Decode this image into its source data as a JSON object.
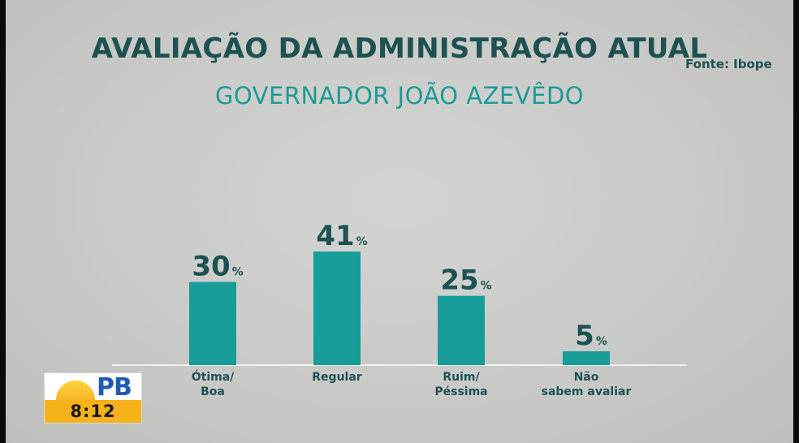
{
  "header": {
    "title": "AVALIAÇÃO DA ADMINISTRAÇÃO ATUAL",
    "subtitle": "GOVERNADOR JOÃO AZEVÊDO",
    "source": "Fonte: Ibope"
  },
  "colors": {
    "bar": "#179c9a",
    "value_text": "#1e5252",
    "category_text": "#1e5252"
  },
  "chart_data": {
    "type": "bar",
    "categories": [
      "Ótima/\nBoa",
      "Regular",
      "Ruim/\nPéssima",
      "Não\nsabem avaliar"
    ],
    "values": [
      30,
      41,
      25,
      5
    ],
    "value_suffix": "%",
    "title": "AVALIAÇÃO DA ADMINISTRAÇÃO ATUAL",
    "subtitle": "GOVERNADOR JOÃO AZEVÊDO",
    "xlabel": "",
    "ylabel": "",
    "ylim": [
      0,
      41
    ],
    "grid": false,
    "legend": "none"
  },
  "logo": {
    "brand": "PB",
    "time": "8:12"
  }
}
